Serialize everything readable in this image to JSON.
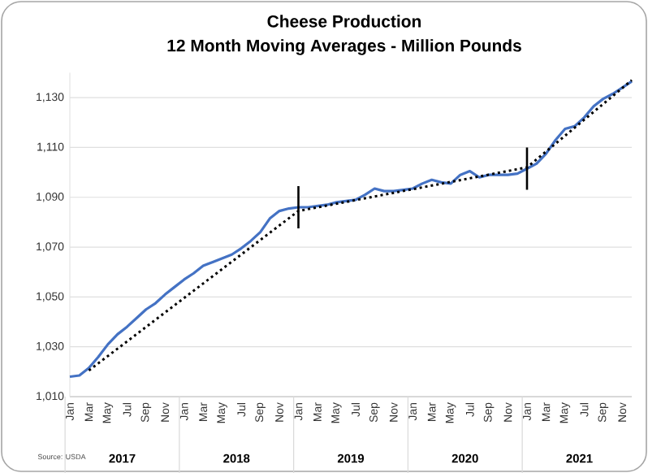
{
  "chart_data": {
    "type": "line",
    "title": "Cheese Production",
    "subtitle": "12 Month Moving Averages - Million Pounds",
    "x": [
      "2017-01",
      "2017-02",
      "2017-03",
      "2017-04",
      "2017-05",
      "2017-06",
      "2017-07",
      "2017-08",
      "2017-09",
      "2017-10",
      "2017-11",
      "2017-12",
      "2018-01",
      "2018-02",
      "2018-03",
      "2018-04",
      "2018-05",
      "2018-06",
      "2018-07",
      "2018-08",
      "2018-09",
      "2018-10",
      "2018-11",
      "2018-12",
      "2019-01",
      "2019-02",
      "2019-03",
      "2019-04",
      "2019-05",
      "2019-06",
      "2019-07",
      "2019-08",
      "2019-09",
      "2019-10",
      "2019-11",
      "2019-12",
      "2020-01",
      "2020-02",
      "2020-03",
      "2020-04",
      "2020-05",
      "2020-06",
      "2020-07",
      "2020-08",
      "2020-09",
      "2020-10",
      "2020-11",
      "2020-12",
      "2021-01",
      "2021-02",
      "2021-03",
      "2021-04",
      "2021-05",
      "2021-06",
      "2021-07",
      "2021-08",
      "2021-09",
      "2021-10",
      "2021-11",
      "2021-12"
    ],
    "series": [
      {
        "color": "#4472c4",
        "line_style": "solid",
        "values": [
          1018,
          1018.5,
          1021.5,
          1026,
          1031,
          1035,
          1038,
          1041.5,
          1045,
          1047.5,
          1051,
          1054,
          1057,
          1059.5,
          1062.5,
          1064,
          1065.5,
          1067,
          1069.5,
          1072.5,
          1076,
          1081.5,
          1084.5,
          1085.5,
          1086,
          1086,
          1086.5,
          1087,
          1088,
          1088.5,
          1089,
          1091,
          1093.5,
          1092.5,
          1092.5,
          1093,
          1093.5,
          1095.5,
          1097,
          1096,
          1095.5,
          1099,
          1100.5,
          1098,
          1099,
          1099,
          1099,
          1099.5,
          1101.5,
          1103.5,
          1107.5,
          1113,
          1117.5,
          1118.5,
          1122,
          1126.5,
          1129.5,
          1131.5,
          1134,
          1136.5
        ]
      },
      {
        "type": "line",
        "color": "#000000",
        "line_style": "dotted",
        "x": [
          "2017-03",
          "2019-01",
          "2021-01",
          "2021-12"
        ],
        "values": [
          1020.5,
          1084.5,
          1102,
          1137
        ]
      }
    ],
    "xlim": [
      "2017-01",
      "2021-12"
    ],
    "xticks": [
      {
        "value": "2017-01",
        "label": "Jan"
      },
      {
        "value": "2017-03",
        "label": "Mar"
      },
      {
        "value": "2017-05",
        "label": "May"
      },
      {
        "value": "2017-07",
        "label": "Jul"
      },
      {
        "value": "2017-09",
        "label": "Sep"
      },
      {
        "value": "2017-11",
        "label": "Nov"
      },
      {
        "value": "2018-01",
        "label": "Jan"
      },
      {
        "value": "2018-03",
        "label": "Mar"
      },
      {
        "value": "2018-05",
        "label": "May"
      },
      {
        "value": "2018-07",
        "label": "Jul"
      },
      {
        "value": "2018-09",
        "label": "Sep"
      },
      {
        "value": "2018-11",
        "label": "Nov"
      },
      {
        "value": "2019-01",
        "label": "Jan"
      },
      {
        "value": "2019-03",
        "label": "Mar"
      },
      {
        "value": "2019-05",
        "label": "May"
      },
      {
        "value": "2019-07",
        "label": "Jul"
      },
      {
        "value": "2019-09",
        "label": "Sep"
      },
      {
        "value": "2019-11",
        "label": "Nov"
      },
      {
        "value": "2020-01",
        "label": "Jan"
      },
      {
        "value": "2020-03",
        "label": "Mar"
      },
      {
        "value": "2020-05",
        "label": "May"
      },
      {
        "value": "2020-07",
        "label": "Jul"
      },
      {
        "value": "2020-09",
        "label": "Sep"
      },
      {
        "value": "2020-11",
        "label": "Nov"
      },
      {
        "value": "2021-01",
        "label": "Jan"
      },
      {
        "value": "2021-03",
        "label": "Mar"
      },
      {
        "value": "2021-05",
        "label": "May"
      },
      {
        "value": "2021-07",
        "label": "Jul"
      },
      {
        "value": "2021-09",
        "label": "Sep"
      },
      {
        "value": "2021-11",
        "label": "Nov"
      }
    ],
    "ylim": [
      1010,
      1140
    ],
    "yticks": [
      {
        "value": 1010,
        "label": "1,010"
      },
      {
        "value": 1030,
        "label": "1,030"
      },
      {
        "value": 1050,
        "label": "1,050"
      },
      {
        "value": 1070,
        "label": "1,070"
      },
      {
        "value": 1090,
        "label": "1,090"
      },
      {
        "value": 1110,
        "label": "1,110"
      },
      {
        "value": 1130,
        "label": "1,130"
      }
    ],
    "grid": "y",
    "marker": "none",
    "ref_lines": [
      {
        "axis": "x",
        "value": "2019-01",
        "color": "#000000"
      },
      {
        "axis": "x",
        "value": "2021-01",
        "color": "#000000"
      }
    ],
    "annotations": [
      "2017",
      "2018",
      "2019",
      "2020",
      "2021",
      "Source: USDA"
    ]
  }
}
